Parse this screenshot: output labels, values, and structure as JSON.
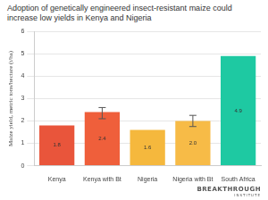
{
  "chart_data": {
    "type": "bar",
    "title": "Adoption of genetically engineered insect-resistant maize could increase low yields in Kenya and Nigeria",
    "y_label": "Maize yield, metric tons/hectare (t/ha)",
    "categories": [
      "Kenya",
      "Kenya with Bt",
      "Nigeria",
      "Nigeria with Bt",
      "South Africa"
    ],
    "values": [
      1.8,
      2.4,
      1.6,
      2.0,
      4.9
    ],
    "value_labels": [
      "1.8",
      "2.4",
      "1.6",
      "2.0",
      "4.9"
    ],
    "error_bars": [
      null,
      [
        2.1,
        2.6
      ],
      null,
      [
        1.75,
        2.25
      ],
      null
    ],
    "colors": [
      "#e9553b",
      "#ef5f3b",
      "#f5b83d",
      "#f7bb47",
      "#1ec9a2"
    ],
    "ylim": [
      0,
      6
    ],
    "yticks": [
      0,
      1,
      2,
      3,
      4,
      5,
      6
    ],
    "grid": true,
    "data_labels": true,
    "logo": "BREAKTHROUGH",
    "logo_subtitle": "INSTITUTE"
  }
}
